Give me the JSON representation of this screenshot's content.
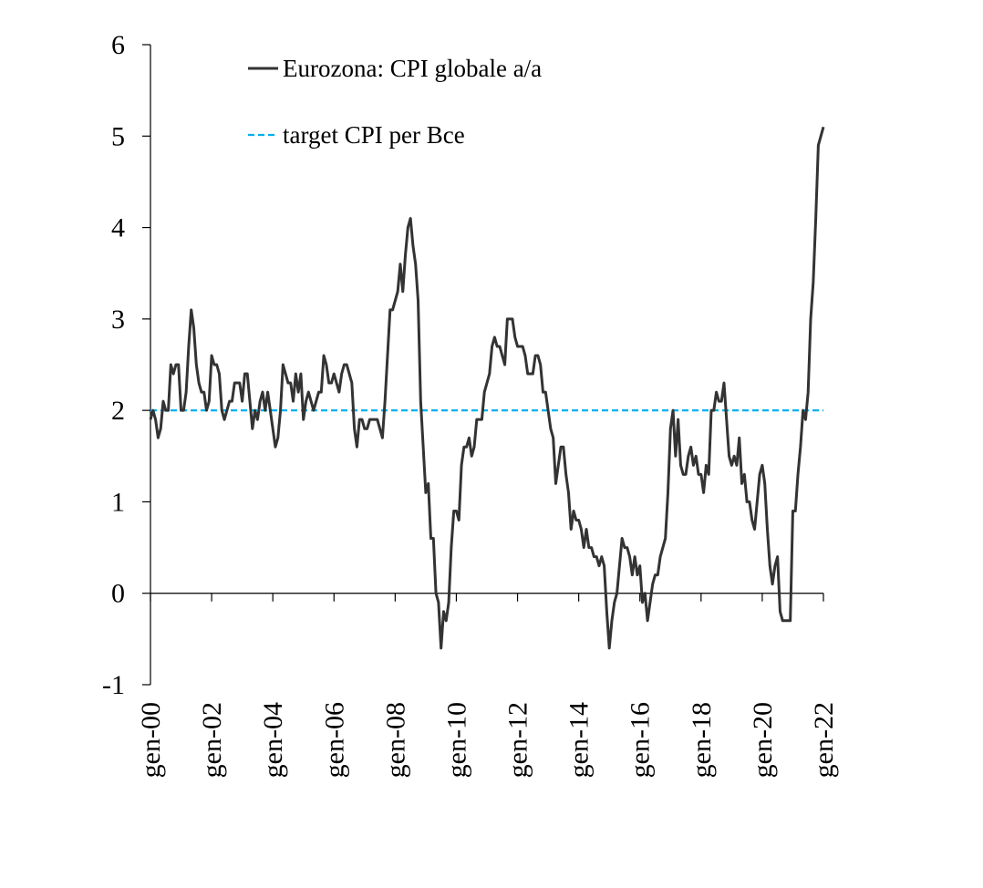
{
  "chart_data": {
    "type": "line",
    "categories": [
      "gen-00",
      null,
      null,
      null,
      null,
      null,
      null,
      null,
      null,
      null,
      null,
      null,
      null,
      null,
      null,
      null,
      null,
      null,
      null,
      null,
      null,
      null,
      null,
      null,
      "gen-02",
      null,
      null,
      null,
      null,
      null,
      null,
      null,
      null,
      null,
      null,
      null,
      null,
      null,
      null,
      null,
      null,
      null,
      null,
      null,
      null,
      null,
      null,
      null,
      "gen-04",
      null,
      null,
      null,
      null,
      null,
      null,
      null,
      null,
      null,
      null,
      null,
      null,
      null,
      null,
      null,
      null,
      null,
      null,
      null,
      null,
      null,
      null,
      null,
      "gen-06",
      null,
      null,
      null,
      null,
      null,
      null,
      null,
      null,
      null,
      null,
      null,
      null,
      null,
      null,
      null,
      null,
      null,
      null,
      null,
      null,
      null,
      null,
      null,
      "gen-08",
      null,
      null,
      null,
      null,
      null,
      null,
      null,
      null,
      null,
      null,
      null,
      null,
      null,
      null,
      null,
      null,
      null,
      null,
      null,
      null,
      null,
      null,
      null,
      "gen-10",
      null,
      null,
      null,
      null,
      null,
      null,
      null,
      null,
      null,
      null,
      null,
      null,
      null,
      null,
      null,
      null,
      null,
      null,
      null,
      null,
      null,
      null,
      null,
      "gen-12",
      null,
      null,
      null,
      null,
      null,
      null,
      null,
      null,
      null,
      null,
      null,
      null,
      null,
      null,
      null,
      null,
      null,
      null,
      null,
      null,
      null,
      null,
      null,
      "gen-14",
      null,
      null,
      null,
      null,
      null,
      null,
      null,
      null,
      null,
      null,
      null,
      null,
      null,
      null,
      null,
      null,
      null,
      null,
      null,
      null,
      null,
      null,
      null,
      "gen-16",
      null,
      null,
      null,
      null,
      null,
      null,
      null,
      null,
      null,
      null,
      null,
      null,
      null,
      null,
      null,
      null,
      null,
      null,
      null,
      null,
      null,
      null,
      null,
      "gen-18",
      null,
      null,
      null,
      null,
      null,
      null,
      null,
      null,
      null,
      null,
      null,
      null,
      null,
      null,
      null,
      null,
      null,
      null,
      null,
      null,
      null,
      null,
      null,
      "gen-20",
      null,
      null,
      null,
      null,
      null,
      null,
      null,
      null,
      null,
      null,
      null,
      null,
      null,
      null,
      null,
      null,
      null,
      null,
      null,
      null,
      null,
      null,
      null,
      "gen-22"
    ],
    "series": [
      {
        "name": "Eurozona: CPI globale a/a",
        "color": "#333333",
        "values": [
          1.9,
          2.0,
          1.9,
          1.7,
          1.8,
          2.1,
          2.0,
          2.0,
          2.5,
          2.4,
          2.5,
          2.5,
          2.0,
          2.0,
          2.2,
          2.7,
          3.1,
          2.9,
          2.5,
          2.3,
          2.2,
          2.2,
          2.0,
          2.1,
          2.6,
          2.5,
          2.5,
          2.4,
          2.0,
          1.9,
          2.0,
          2.1,
          2.1,
          2.3,
          2.3,
          2.3,
          2.1,
          2.4,
          2.4,
          2.1,
          1.8,
          2.0,
          1.9,
          2.1,
          2.2,
          2.0,
          2.2,
          2.0,
          1.8,
          1.6,
          1.7,
          2.0,
          2.5,
          2.4,
          2.3,
          2.3,
          2.1,
          2.4,
          2.2,
          2.4,
          1.9,
          2.1,
          2.2,
          2.1,
          2.0,
          2.1,
          2.2,
          2.2,
          2.6,
          2.5,
          2.3,
          2.3,
          2.4,
          2.3,
          2.2,
          2.4,
          2.5,
          2.5,
          2.4,
          2.3,
          1.8,
          1.6,
          1.9,
          1.9,
          1.8,
          1.8,
          1.9,
          1.9,
          1.9,
          1.9,
          1.8,
          1.7,
          2.1,
          2.6,
          3.1,
          3.1,
          3.2,
          3.3,
          3.6,
          3.3,
          3.7,
          4.0,
          4.1,
          3.8,
          3.6,
          3.2,
          2.1,
          1.6,
          1.1,
          1.2,
          0.6,
          0.6,
          0.0,
          -0.1,
          -0.6,
          -0.2,
          -0.3,
          -0.1,
          0.5,
          0.9,
          0.9,
          0.8,
          1.4,
          1.6,
          1.6,
          1.7,
          1.5,
          1.6,
          1.9,
          1.9,
          1.9,
          2.2,
          2.3,
          2.4,
          2.7,
          2.8,
          2.7,
          2.7,
          2.6,
          2.5,
          3.0,
          3.0,
          3.0,
          2.8,
          2.7,
          2.7,
          2.7,
          2.6,
          2.4,
          2.4,
          2.4,
          2.6,
          2.6,
          2.5,
          2.2,
          2.2,
          2.0,
          1.8,
          1.7,
          1.2,
          1.4,
          1.6,
          1.6,
          1.3,
          1.1,
          0.7,
          0.9,
          0.8,
          0.8,
          0.7,
          0.5,
          0.7,
          0.5,
          0.5,
          0.4,
          0.4,
          0.3,
          0.4,
          0.3,
          -0.2,
          -0.6,
          -0.3,
          -0.1,
          0.0,
          0.3,
          0.6,
          0.5,
          0.5,
          0.4,
          0.2,
          0.4,
          0.2,
          0.3,
          -0.1,
          0.0,
          -0.3,
          -0.1,
          0.1,
          0.2,
          0.2,
          0.4,
          0.5,
          0.6,
          1.1,
          1.8,
          2.0,
          1.5,
          1.9,
          1.4,
          1.3,
          1.3,
          1.5,
          1.6,
          1.4,
          1.5,
          1.3,
          1.3,
          1.1,
          1.4,
          1.3,
          2.0,
          2.0,
          2.2,
          2.1,
          2.1,
          2.3,
          1.9,
          1.5,
          1.4,
          1.5,
          1.4,
          1.7,
          1.2,
          1.3,
          1.0,
          1.0,
          0.8,
          0.7,
          1.0,
          1.3,
          1.4,
          1.2,
          0.7,
          0.3,
          0.1,
          0.3,
          0.4,
          -0.2,
          -0.3,
          -0.3,
          -0.3,
          -0.3,
          0.9,
          0.9,
          1.3,
          1.6,
          2.0,
          1.9,
          2.2,
          3.0,
          3.4,
          4.1,
          4.9,
          5.0,
          5.1
        ]
      }
    ],
    "reference_lines": [
      {
        "name": "target CPI per Bce",
        "color": "#00b0f0",
        "value": 2,
        "style": "dashed"
      }
    ],
    "ylim": [
      -1,
      6
    ],
    "yticks": [
      -1,
      0,
      1,
      2,
      3,
      4,
      5,
      6
    ],
    "grid": false,
    "legend": "top-left"
  }
}
